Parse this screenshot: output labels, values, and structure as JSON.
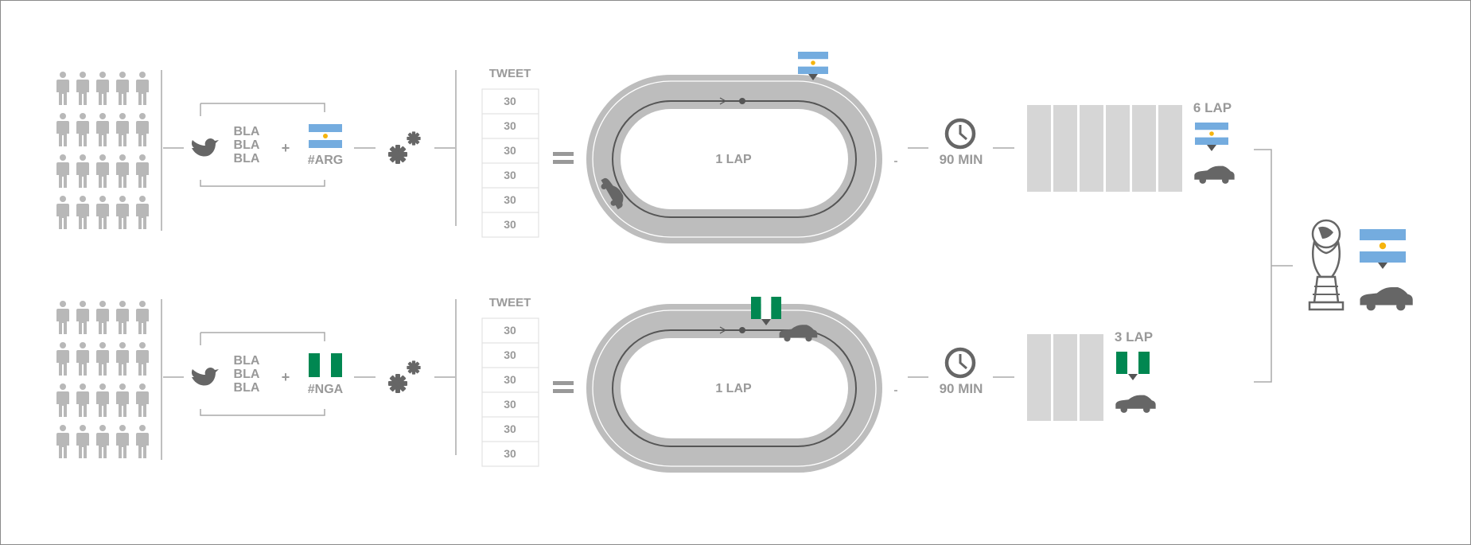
{
  "colors": {
    "gray": "#b8b8b8",
    "dark": "#666666",
    "line": "#aaaaaa",
    "track": "#bdbdbd",
    "flag_blue": "#74acdf",
    "flag_green": "#008751",
    "flag_sun": "#f6b40e"
  },
  "icons": [
    "person-icon",
    "twitter-bird-icon",
    "gears-icon",
    "clock-icon",
    "car-icon",
    "trophy-icon",
    "flag-argentina-icon",
    "flag-nigeria-icon"
  ],
  "rows": [
    {
      "id": "arg",
      "bla": [
        "BLA",
        "BLA",
        "BLA"
      ],
      "plus": "+",
      "hashtag": "#ARG",
      "tweet_header": "TWEET",
      "tweets": [
        "30",
        "30",
        "30",
        "30",
        "30",
        "30"
      ],
      "equals": "=",
      "lap_label": "1 LAP",
      "time": "90 MIN",
      "laps_completed": 6,
      "result": "6 LAP"
    },
    {
      "id": "nga",
      "bla": [
        "BLA",
        "BLA",
        "BLA"
      ],
      "plus": "+",
      "hashtag": "#NGA",
      "tweet_header": "TWEET",
      "tweets": [
        "30",
        "30",
        "30",
        "30",
        "30",
        "30"
      ],
      "equals": "=",
      "lap_label": "1 LAP",
      "time": "90 MIN",
      "laps_completed": 3,
      "result": "3 LAP"
    }
  ],
  "winner": "arg"
}
